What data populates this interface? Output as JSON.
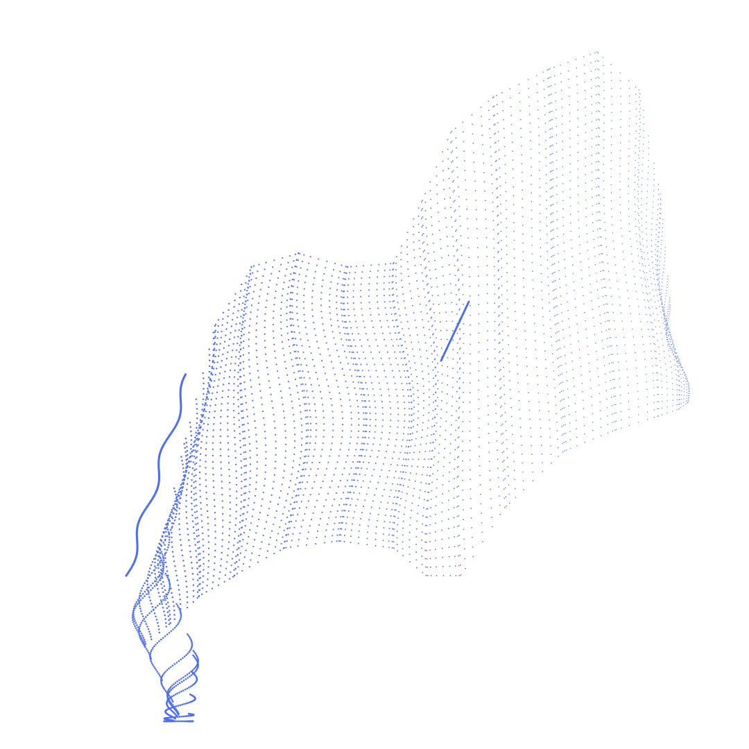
{
  "artwork": {
    "subject": "dotted-wave-surface",
    "dot_color": "#4f6ef2",
    "background_color": "#ffffff"
  }
}
